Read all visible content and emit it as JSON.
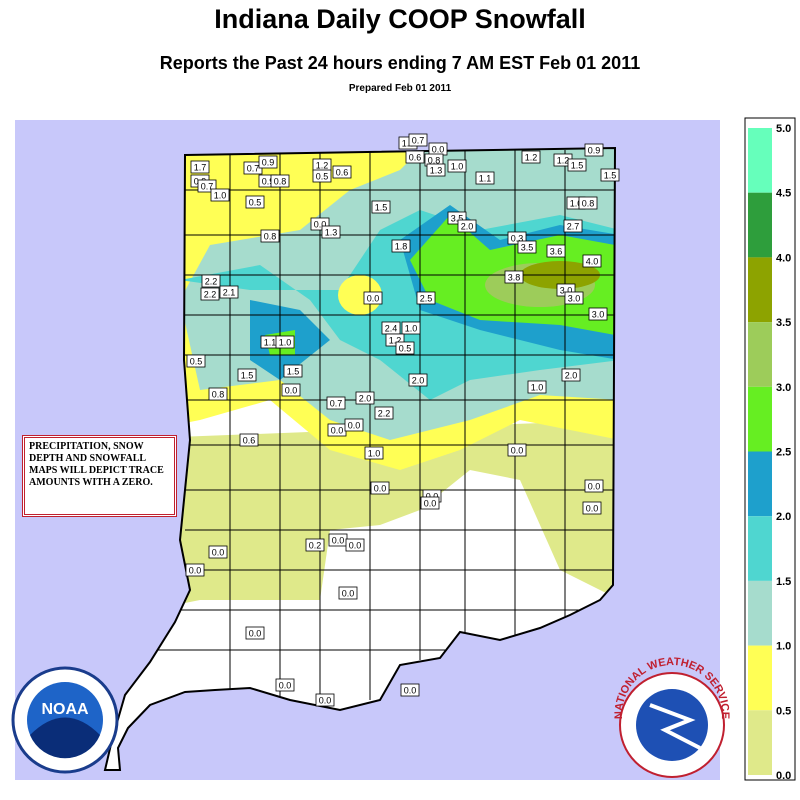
{
  "header": {
    "title": "Indiana Daily COOP Snowfall",
    "subtitle": "Reports the Past 24 hours ending 7 AM EST Feb 01  2011",
    "prepared": "Prepared Feb 01 2011"
  },
  "note": "PRECIPITATION, SNOW DEPTH AND SNOWFALL MAPS WILL DEPICT TRACE AMOUNTS WITH A ZERO.",
  "legend": {
    "labels": [
      "5.0",
      "4.5",
      "4.0",
      "3.5",
      "3.0",
      "2.5",
      "2.0",
      "1.5",
      "1.0",
      "0.5",
      "0.0"
    ],
    "colors": [
      "#66ffbb",
      "#2e9e3c",
      "#8da300",
      "#9dcc5a",
      "#66ee22",
      "#1ea0cc",
      "#4fd6d0",
      "#a6dccd",
      "#ffff55",
      "#dfe98a"
    ]
  },
  "stations": [
    "1.7",
    "0.9",
    "0.7",
    "1.0",
    "0.7",
    "0.9",
    "0.9",
    "0.8",
    "1.2",
    "0.5",
    "0.6",
    "1.0",
    "0.7",
    "0.0",
    "0.6",
    "0.8",
    "1.3",
    "1.0",
    "1.1",
    "1.2",
    "1.2",
    "1.5",
    "0.9",
    "1.5",
    "0.5",
    "1.5",
    "1.0",
    "0.8",
    "3.5",
    "2.0",
    "0.8",
    "0.0",
    "1.3",
    "2.7",
    "0.3",
    "3.5",
    "3.6",
    "4.0",
    "1.8",
    "2.2",
    "2.2",
    "2.1",
    "3.8",
    "3.0",
    "3.0",
    "0.0",
    "2.5",
    "3.0",
    "2.4",
    "1.0",
    "1.2",
    "0.5",
    "1.1",
    "1.0",
    "0.5",
    "1.5",
    "1.5",
    "2.0",
    "1.0",
    "2.0",
    "0.8",
    "0.0",
    "0.7",
    "2.0",
    "0.0",
    "0.0",
    "2.2",
    "0.6",
    "1.0",
    "0.0",
    "0.0",
    "0.0",
    "0.0",
    "0.0",
    "0.0",
    "0.2",
    "0.0",
    "0.0",
    "0.0",
    "0.0",
    "0.0",
    "0.0",
    "0.0",
    "0.0",
    "0.0"
  ],
  "logos": {
    "noaa": "NOAA",
    "nws": "NATIONAL WEATHER SERVICE"
  }
}
